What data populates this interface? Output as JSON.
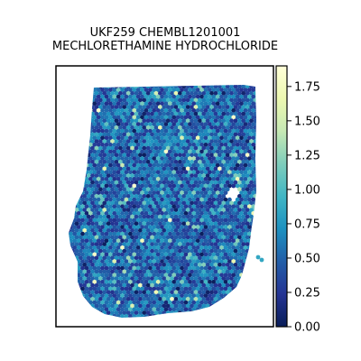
{
  "chart_data": {
    "type": "scatter",
    "title_lines": [
      "UKF259 CHEMBL1201001",
      "MECHLORETHAMINE HYDROCHLORIDE"
    ],
    "xlabel": "",
    "ylabel": "",
    "grid": false,
    "colormap": "YlGnBu",
    "color_range": [
      0.0,
      1.9
    ],
    "colorbar": {
      "ticks": [
        0.0,
        0.25,
        0.5,
        0.75,
        1.0,
        1.25,
        1.5,
        1.75
      ],
      "tick_labels": [
        "0.00",
        "0.25",
        "0.50",
        "0.75",
        "1.00",
        "1.25",
        "1.50",
        "1.75"
      ],
      "colors": [
        "#081d58",
        "#253494",
        "#225ea8",
        "#1d91c0",
        "#41b6c4",
        "#7fcdbb",
        "#c7e9b4",
        "#edf8b1",
        "#ffffd9"
      ]
    },
    "tissue_summary": {
      "typical_value_range": [
        0.3,
        0.6
      ],
      "max_value": 1.85,
      "min_value": 0.0
    }
  }
}
